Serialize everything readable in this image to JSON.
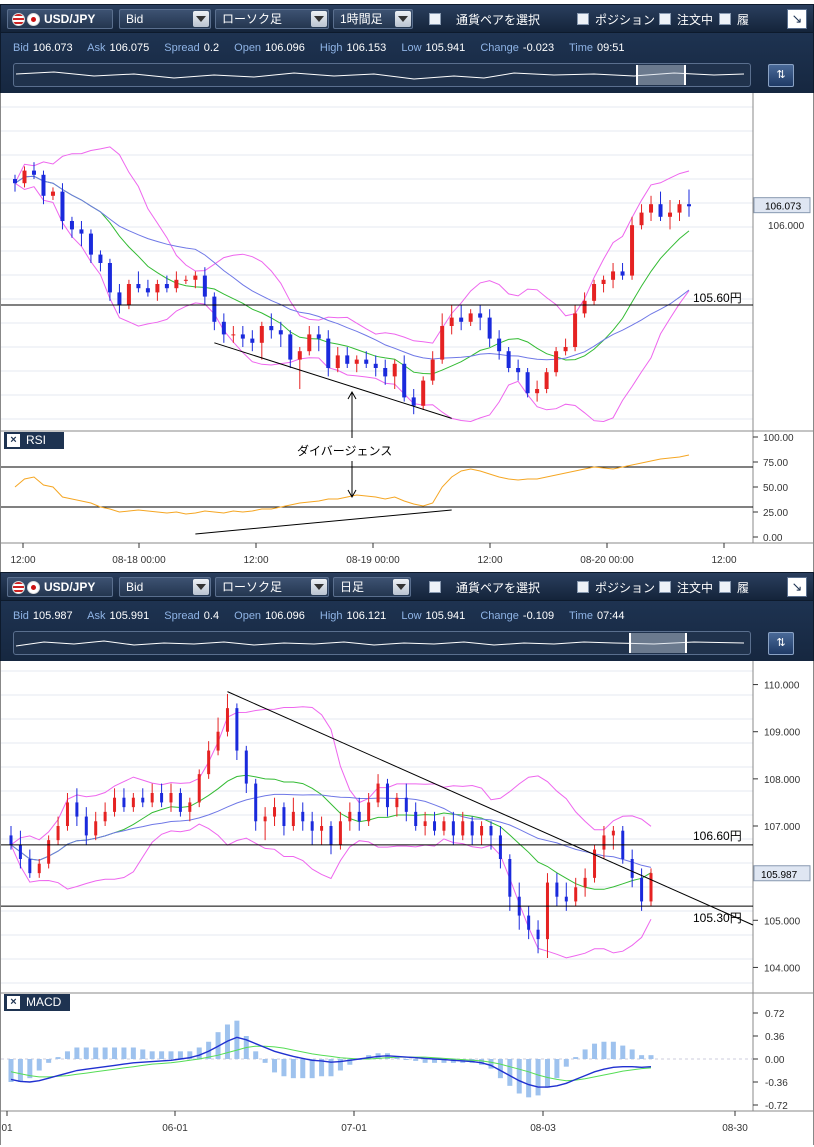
{
  "top": {
    "toolbar": {
      "symbol": "USD/JPY",
      "price_type": "Bid",
      "chart_type": "ローソク足",
      "timeframe": "1時間足",
      "pair_select": "通貨ペアを選択",
      "position": "ポジション",
      "orders": "注文中",
      "history": "履"
    },
    "info": {
      "bid_k": "Bid",
      "bid": "106.073",
      "ask_k": "Ask",
      "ask": "106.075",
      "spread_k": "Spread",
      "spread": "0.2",
      "open_k": "Open",
      "open": "106.096",
      "high_k": "High",
      "high": "106.153",
      "low_k": "Low",
      "low": "105.941",
      "change_k": "Change",
      "change": "-0.023",
      "time_k": "Time",
      "time": "09:51"
    },
    "price_label": "106.073",
    "price_tick": "106.000",
    "line_label": "105.60円",
    "annotation": "ダイバージェンス",
    "rsi_title": "RSI",
    "rsi_ticks": [
      "100.00",
      "75.00",
      "50.00",
      "25.00",
      "0.00"
    ],
    "x_ticks": [
      "12:00",
      "08-18 00:00",
      "12:00",
      "08-19 00:00",
      "12:00",
      "08-20 00:00",
      "12:00"
    ]
  },
  "bottom": {
    "toolbar": {
      "symbol": "USD/JPY",
      "price_type": "Bid",
      "chart_type": "ローソク足",
      "timeframe": "日足",
      "pair_select": "通貨ペアを選択",
      "position": "ポジション",
      "orders": "注文中",
      "history": "履"
    },
    "info": {
      "bid_k": "Bid",
      "bid": "105.987",
      "ask_k": "Ask",
      "ask": "105.991",
      "spread_k": "Spread",
      "spread": "0.4",
      "open_k": "Open",
      "open": "106.096",
      "high_k": "High",
      "high": "106.121",
      "low_k": "Low",
      "low": "105.941",
      "change_k": "Change",
      "change": "-0.109",
      "time_k": "Time",
      "time": "07:44"
    },
    "price_label": "105.987",
    "y_ticks": [
      "110.000",
      "109.000",
      "108.000",
      "107.000",
      "105.000",
      "104.000"
    ],
    "line_label_1": "106.60円",
    "line_label_2": "105.30円",
    "macd_title": "MACD",
    "macd_ticks": [
      "0.72",
      "0.36",
      "0.00",
      "-0.36",
      "-0.72"
    ],
    "x_ticks": [
      "01",
      "06-01",
      "07-01",
      "08-03",
      "08-30"
    ]
  },
  "colors": {
    "bull": "#e52222",
    "bear": "#1a2adc",
    "bb_outer": "#ee66ee",
    "bb_mid": "#33bb33",
    "ma": "#6f78e6",
    "rsi": "#f5a623",
    "macd": "#2030d0",
    "signal": "#55dd55",
    "hist": "#9ec2ee"
  },
  "chart_data": [
    {
      "type": "candlestick",
      "timeframe": "1時間足",
      "ylim": [
        105.0,
        106.6
      ],
      "hlines": [
        105.6
      ],
      "candles": [
        [
          106.2,
          106.22,
          106.14,
          106.18
        ],
        [
          106.18,
          106.26,
          106.16,
          106.24
        ],
        [
          106.24,
          106.28,
          106.2,
          106.22
        ],
        [
          106.22,
          106.24,
          106.08,
          106.12
        ],
        [
          106.12,
          106.16,
          106.1,
          106.14
        ],
        [
          106.14,
          106.18,
          105.96,
          106.0
        ],
        [
          106.0,
          106.02,
          105.92,
          105.96
        ],
        [
          105.96,
          106.0,
          105.88,
          105.94
        ],
        [
          105.94,
          105.96,
          105.8,
          105.84
        ],
        [
          105.84,
          105.86,
          105.76,
          105.8
        ],
        [
          105.8,
          105.82,
          105.62,
          105.66
        ],
        [
          105.66,
          105.7,
          105.56,
          105.6
        ],
        [
          105.6,
          105.72,
          105.58,
          105.7
        ],
        [
          105.7,
          105.76,
          105.66,
          105.68
        ],
        [
          105.68,
          105.72,
          105.64,
          105.66
        ],
        [
          105.66,
          105.72,
          105.62,
          105.7
        ],
        [
          105.7,
          105.74,
          105.66,
          105.68
        ],
        [
          105.68,
          105.76,
          105.66,
          105.72
        ],
        [
          105.72,
          105.74,
          105.7,
          105.72
        ],
        [
          105.72,
          105.76,
          105.68,
          105.74
        ],
        [
          105.74,
          105.78,
          105.6,
          105.64
        ],
        [
          105.64,
          105.66,
          105.48,
          105.52
        ],
        [
          105.52,
          105.56,
          105.42,
          105.46
        ],
        [
          105.46,
          105.5,
          105.42,
          105.46
        ],
        [
          105.46,
          105.5,
          105.4,
          105.44
        ],
        [
          105.44,
          105.48,
          105.38,
          105.42
        ],
        [
          105.42,
          105.52,
          105.34,
          105.5
        ],
        [
          105.5,
          105.56,
          105.44,
          105.48
        ],
        [
          105.48,
          105.52,
          105.4,
          105.46
        ],
        [
          105.46,
          105.48,
          105.3,
          105.34
        ],
        [
          105.34,
          105.4,
          105.2,
          105.38
        ],
        [
          105.38,
          105.5,
          105.36,
          105.46
        ],
        [
          105.46,
          105.5,
          105.38,
          105.44
        ],
        [
          105.44,
          105.48,
          105.26,
          105.3
        ],
        [
          105.3,
          105.4,
          105.28,
          105.36
        ],
        [
          105.36,
          105.4,
          105.3,
          105.32
        ],
        [
          105.32,
          105.36,
          105.28,
          105.34
        ],
        [
          105.34,
          105.38,
          105.3,
          105.32
        ],
        [
          105.32,
          105.36,
          105.26,
          105.3
        ],
        [
          105.3,
          105.34,
          105.22,
          105.26
        ],
        [
          105.26,
          105.34,
          105.2,
          105.32
        ],
        [
          105.32,
          105.36,
          105.14,
          105.16
        ],
        [
          105.16,
          105.2,
          105.08,
          105.12
        ],
        [
          105.12,
          105.26,
          105.1,
          105.24
        ],
        [
          105.24,
          105.38,
          105.22,
          105.34
        ],
        [
          105.34,
          105.56,
          105.32,
          105.5
        ],
        [
          105.5,
          105.6,
          105.46,
          105.54
        ],
        [
          105.54,
          105.6,
          105.48,
          105.52
        ],
        [
          105.52,
          105.58,
          105.5,
          105.56
        ],
        [
          105.56,
          105.6,
          105.48,
          105.54
        ],
        [
          105.54,
          105.58,
          105.4,
          105.44
        ],
        [
          105.44,
          105.48,
          105.34,
          105.38
        ],
        [
          105.38,
          105.4,
          105.28,
          105.3
        ],
        [
          105.3,
          105.34,
          105.24,
          105.28
        ],
        [
          105.28,
          105.3,
          105.16,
          105.18
        ],
        [
          105.18,
          105.24,
          105.14,
          105.2
        ],
        [
          105.2,
          105.3,
          105.18,
          105.28
        ],
        [
          105.28,
          105.4,
          105.26,
          105.38
        ],
        [
          105.38,
          105.44,
          105.36,
          105.4
        ],
        [
          105.4,
          105.6,
          105.38,
          105.56
        ],
        [
          105.56,
          105.66,
          105.54,
          105.62
        ],
        [
          105.62,
          105.72,
          105.6,
          105.7
        ],
        [
          105.7,
          105.74,
          105.66,
          105.72
        ],
        [
          105.72,
          105.8,
          105.68,
          105.76
        ],
        [
          105.76,
          105.8,
          105.72,
          105.74
        ],
        [
          105.74,
          106.02,
          105.72,
          105.98
        ],
        [
          105.98,
          106.08,
          105.96,
          106.04
        ],
        [
          106.04,
          106.12,
          106.0,
          106.08
        ],
        [
          106.08,
          106.14,
          106.0,
          106.02
        ],
        [
          106.02,
          106.1,
          105.96,
          106.04
        ],
        [
          106.04,
          106.1,
          106.0,
          106.08
        ],
        [
          106.08,
          106.15,
          106.02,
          106.07
        ]
      ],
      "rsi": [
        50,
        58,
        60,
        52,
        50,
        40,
        38,
        36,
        34,
        30,
        28,
        25,
        26,
        27,
        26,
        25,
        24,
        25,
        23,
        24,
        26,
        25,
        24,
        26,
        25,
        26,
        28,
        28,
        30,
        32,
        34,
        35,
        36,
        38,
        38,
        40,
        42,
        41,
        40,
        38,
        40,
        36,
        33,
        31,
        34,
        50,
        60,
        66,
        68,
        66,
        63,
        60,
        58,
        57,
        58,
        58,
        60,
        62,
        64,
        66,
        68,
        70,
        69,
        68,
        70,
        72,
        74,
        76,
        78,
        79,
        80,
        82
      ]
    },
    {
      "type": "candlestick",
      "timeframe": "日足",
      "ylim": [
        103.5,
        110.5
      ],
      "hlines": [
        106.6,
        105.3
      ],
      "candles": [
        [
          106.8,
          107.0,
          106.5,
          106.6
        ],
        [
          106.6,
          106.9,
          106.1,
          106.3
        ],
        [
          106.3,
          106.5,
          105.9,
          106.0
        ],
        [
          106.0,
          106.3,
          105.9,
          106.2
        ],
        [
          106.2,
          106.8,
          106.1,
          106.7
        ],
        [
          106.7,
          107.2,
          106.6,
          107.0
        ],
        [
          107.0,
          107.7,
          106.9,
          107.5
        ],
        [
          107.5,
          107.8,
          107.0,
          107.2
        ],
        [
          107.2,
          107.4,
          106.6,
          106.8
        ],
        [
          106.8,
          107.3,
          106.7,
          107.1
        ],
        [
          107.1,
          107.5,
          107.0,
          107.3
        ],
        [
          107.3,
          107.8,
          107.2,
          107.6
        ],
        [
          107.6,
          107.8,
          107.3,
          107.4
        ],
        [
          107.4,
          107.7,
          107.3,
          107.6
        ],
        [
          107.6,
          107.8,
          107.4,
          107.5
        ],
        [
          107.5,
          107.9,
          107.4,
          107.7
        ],
        [
          107.7,
          107.9,
          107.4,
          107.5
        ],
        [
          107.5,
          107.9,
          107.3,
          107.7
        ],
        [
          107.7,
          107.8,
          107.2,
          107.3
        ],
        [
          107.3,
          107.6,
          107.1,
          107.5
        ],
        [
          107.5,
          108.2,
          107.4,
          108.1
        ],
        [
          108.1,
          108.8,
          108.0,
          108.6
        ],
        [
          108.6,
          109.3,
          108.5,
          109.0
        ],
        [
          109.0,
          109.8,
          108.9,
          109.5
        ],
        [
          109.5,
          109.6,
          108.4,
          108.6
        ],
        [
          108.6,
          108.7,
          107.7,
          107.9
        ],
        [
          107.9,
          108.0,
          106.9,
          107.1
        ],
        [
          107.1,
          107.4,
          106.7,
          107.2
        ],
        [
          107.2,
          107.6,
          107.0,
          107.4
        ],
        [
          107.4,
          107.5,
          106.8,
          107.0
        ],
        [
          107.0,
          107.6,
          106.9,
          107.3
        ],
        [
          107.3,
          107.5,
          106.9,
          107.1
        ],
        [
          107.1,
          107.3,
          106.6,
          106.9
        ],
        [
          106.9,
          107.2,
          106.6,
          107.0
        ],
        [
          107.0,
          107.1,
          106.4,
          106.6
        ],
        [
          106.6,
          107.3,
          106.5,
          107.1
        ],
        [
          107.1,
          107.5,
          106.9,
          107.3
        ],
        [
          107.3,
          107.6,
          106.9,
          107.1
        ],
        [
          107.1,
          107.7,
          107.0,
          107.5
        ],
        [
          107.5,
          108.1,
          107.4,
          107.9
        ],
        [
          107.9,
          108.0,
          107.2,
          107.4
        ],
        [
          107.4,
          107.7,
          107.2,
          107.6
        ],
        [
          107.6,
          107.9,
          107.1,
          107.3
        ],
        [
          107.3,
          107.5,
          106.9,
          107.0
        ],
        [
          107.0,
          107.3,
          106.8,
          107.1
        ],
        [
          107.1,
          107.3,
          106.8,
          106.9
        ],
        [
          106.9,
          107.2,
          106.8,
          107.1
        ],
        [
          107.1,
          107.3,
          106.6,
          106.8
        ],
        [
          106.8,
          107.3,
          106.7,
          107.1
        ],
        [
          107.1,
          107.2,
          106.6,
          106.8
        ],
        [
          106.8,
          107.1,
          106.6,
          107.0
        ],
        [
          107.0,
          107.1,
          106.5,
          106.8
        ],
        [
          106.8,
          107.0,
          106.1,
          106.3
        ],
        [
          106.3,
          106.4,
          105.2,
          105.5
        ],
        [
          105.5,
          105.8,
          104.8,
          105.1
        ],
        [
          105.1,
          105.3,
          104.6,
          104.8
        ],
        [
          104.8,
          105.0,
          104.3,
          104.6
        ],
        [
          104.6,
          106.0,
          104.2,
          105.8
        ],
        [
          105.8,
          106.0,
          105.3,
          105.5
        ],
        [
          105.5,
          105.8,
          105.2,
          105.4
        ],
        [
          105.4,
          105.9,
          105.3,
          105.7
        ],
        [
          105.7,
          106.1,
          105.5,
          105.9
        ],
        [
          105.9,
          106.6,
          105.8,
          106.5
        ],
        [
          106.5,
          107.0,
          106.3,
          106.8
        ],
        [
          106.8,
          107.0,
          106.5,
          106.9
        ],
        [
          106.9,
          107.0,
          106.2,
          106.3
        ],
        [
          106.3,
          106.5,
          105.7,
          105.9
        ],
        [
          105.9,
          106.1,
          105.2,
          105.4
        ],
        [
          105.4,
          106.1,
          105.3,
          106.0
        ]
      ],
      "macd": [
        -0.32,
        -0.35,
        -0.36,
        -0.34,
        -0.3,
        -0.26,
        -0.22,
        -0.18,
        -0.16,
        -0.14,
        -0.12,
        -0.1,
        -0.08,
        -0.06,
        -0.05,
        -0.04,
        -0.03,
        -0.02,
        0.0,
        0.02,
        0.06,
        0.12,
        0.2,
        0.28,
        0.34,
        0.3,
        0.24,
        0.18,
        0.12,
        0.08,
        0.04,
        0.01,
        -0.02,
        -0.03,
        -0.05,
        -0.04,
        -0.02,
        0.0,
        0.02,
        0.04,
        0.05,
        0.04,
        0.03,
        0.02,
        0.01,
        0.0,
        -0.01,
        -0.02,
        -0.03,
        -0.04,
        -0.06,
        -0.1,
        -0.18,
        -0.26,
        -0.34,
        -0.4,
        -0.44,
        -0.44,
        -0.42,
        -0.38,
        -0.32,
        -0.26,
        -0.2,
        -0.16,
        -0.13,
        -0.12,
        -0.12,
        -0.13,
        -0.12
      ],
      "signal": [
        -0.2,
        -0.23,
        -0.26,
        -0.28,
        -0.28,
        -0.27,
        -0.26,
        -0.24,
        -0.22,
        -0.2,
        -0.18,
        -0.16,
        -0.14,
        -0.12,
        -0.1,
        -0.08,
        -0.07,
        -0.06,
        -0.04,
        -0.02,
        0.0,
        0.03,
        0.06,
        0.1,
        0.14,
        0.18,
        0.2,
        0.2,
        0.19,
        0.17,
        0.14,
        0.11,
        0.08,
        0.06,
        0.04,
        0.02,
        0.01,
        0.0,
        0.0,
        0.01,
        0.02,
        0.03,
        0.03,
        0.03,
        0.03,
        0.02,
        0.01,
        0.0,
        -0.01,
        -0.02,
        -0.03,
        -0.05,
        -0.08,
        -0.12,
        -0.16,
        -0.2,
        -0.25,
        -0.29,
        -0.32,
        -0.34,
        -0.33,
        -0.31,
        -0.28,
        -0.25,
        -0.22,
        -0.19,
        -0.17,
        -0.15,
        -0.14
      ]
    }
  ]
}
